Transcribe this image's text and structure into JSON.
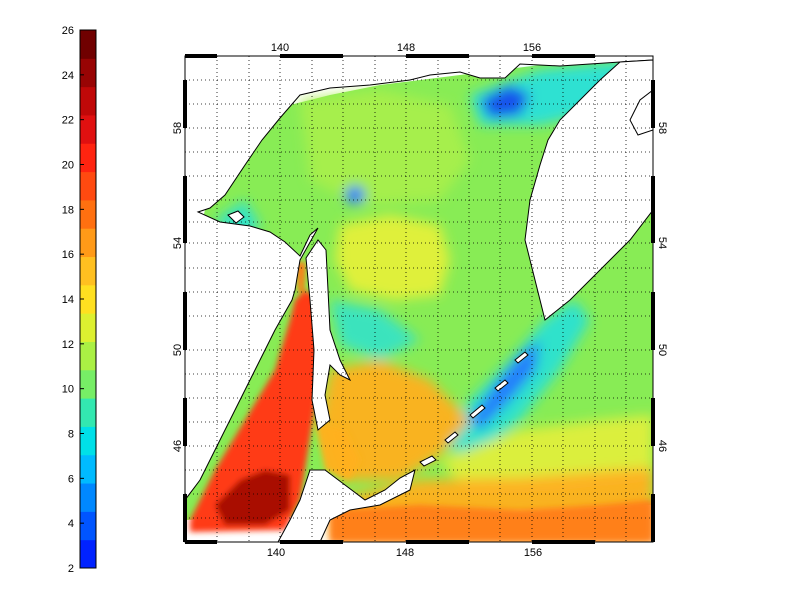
{
  "colorbar": {
    "ticks": [
      "2",
      "4",
      "6",
      "8",
      "10",
      "12",
      "14",
      "16",
      "18",
      "20",
      "22",
      "24",
      "26"
    ],
    "colors": [
      "#0022ff",
      "#0055ff",
      "#0088ff",
      "#00bbff",
      "#00e0e8",
      "#33e8b0",
      "#77ee66",
      "#aaf044",
      "#ddf030",
      "#ffe020",
      "#ffc020",
      "#ff9a18",
      "#ff7010",
      "#ff4a10",
      "#ff2410",
      "#e01010",
      "#c00808",
      "#980404",
      "#700000"
    ]
  },
  "map": {
    "lon_ticks_top": [
      "140",
      "148",
      "156"
    ],
    "lon_ticks_bottom": [
      "140",
      "148",
      "156"
    ],
    "lat_ticks_left": [
      "58",
      "54",
      "50",
      "46"
    ],
    "lat_ticks_right": [
      "58",
      "54",
      "50",
      "46"
    ]
  },
  "palette": {
    "green": "#88ec55",
    "light_green": "#a8f04a",
    "yellow": "#e4f03a",
    "cyan": "#22e0e0",
    "blue": "#2277ff",
    "deep_blue": "#1144ee",
    "orange": "#ffb020",
    "dark_orange": "#ff7a18",
    "red": "#ff3a12",
    "dark_red": "#a00404",
    "land": "#ffffff",
    "coast": "#000000"
  }
}
